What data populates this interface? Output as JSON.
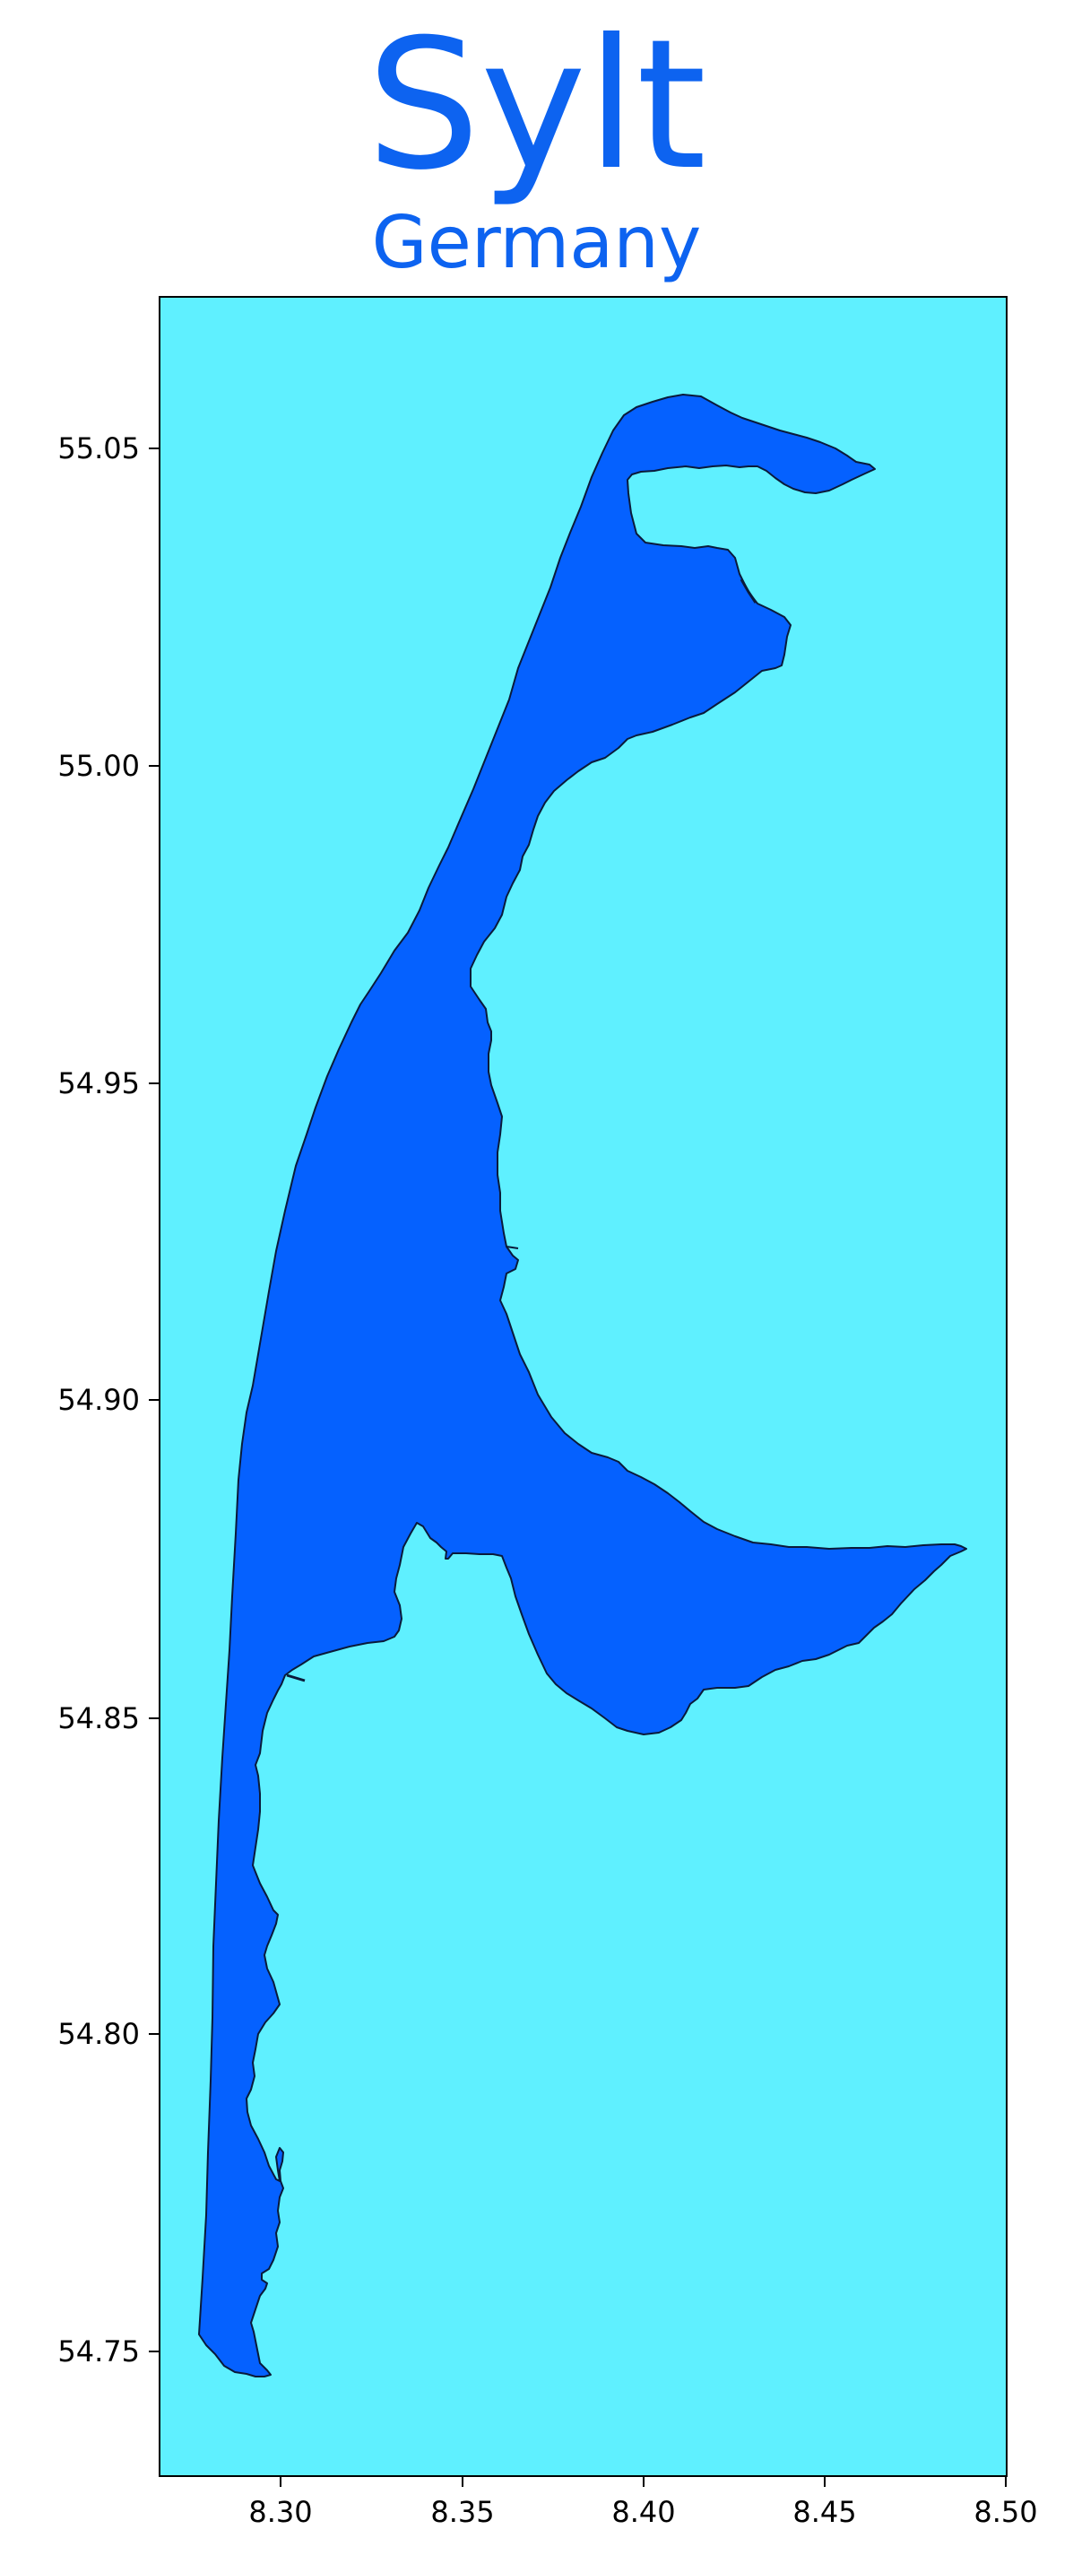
{
  "map": {
    "title": "Sylt",
    "subtitle": "Germany",
    "colors": {
      "water": "#5ff0ff",
      "land": "#0561ff",
      "outline": "#0a1a3a",
      "title": "#0d63f0"
    },
    "x_ticks": [
      "8.30",
      "8.35",
      "8.40",
      "8.45",
      "8.50"
    ],
    "y_ticks": [
      "55.05",
      "55.00",
      "54.95",
      "54.90",
      "54.85",
      "54.80",
      "54.75"
    ],
    "x_range": [
      8.268,
      8.502
    ],
    "y_range": [
      54.731,
      55.074
    ]
  }
}
